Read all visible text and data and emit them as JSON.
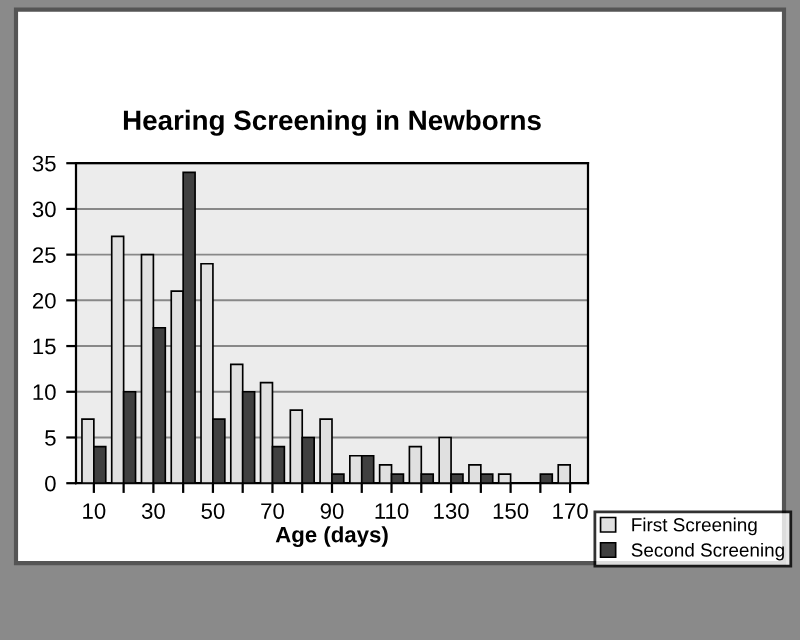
{
  "chart_data": {
    "type": "bar",
    "title": "Hearing Screening in Newborns",
    "xlabel": "Age (days)",
    "categories": [
      "10",
      null,
      "30",
      null,
      "50",
      null,
      "70",
      null,
      "90",
      null,
      "110",
      null,
      "130",
      null,
      "150",
      null,
      "170"
    ],
    "series": [
      {
        "name": "First Screening",
        "color": "#e0e0e0",
        "values": [
          7,
          27,
          25,
          21,
          24,
          13,
          11,
          8,
          7,
          3,
          2,
          4,
          5,
          2,
          1,
          0,
          2
        ]
      },
      {
        "name": "Second Screening",
        "color": "#404040",
        "values": [
          4,
          10,
          17,
          34,
          7,
          10,
          4,
          5,
          1,
          3,
          1,
          1,
          1,
          1,
          0,
          1,
          0
        ]
      }
    ],
    "ylim": [
      0,
      35
    ],
    "yticks": [
      0,
      5,
      10,
      15,
      20,
      25,
      30,
      35
    ],
    "grid": "y",
    "legend": "bottom right"
  }
}
